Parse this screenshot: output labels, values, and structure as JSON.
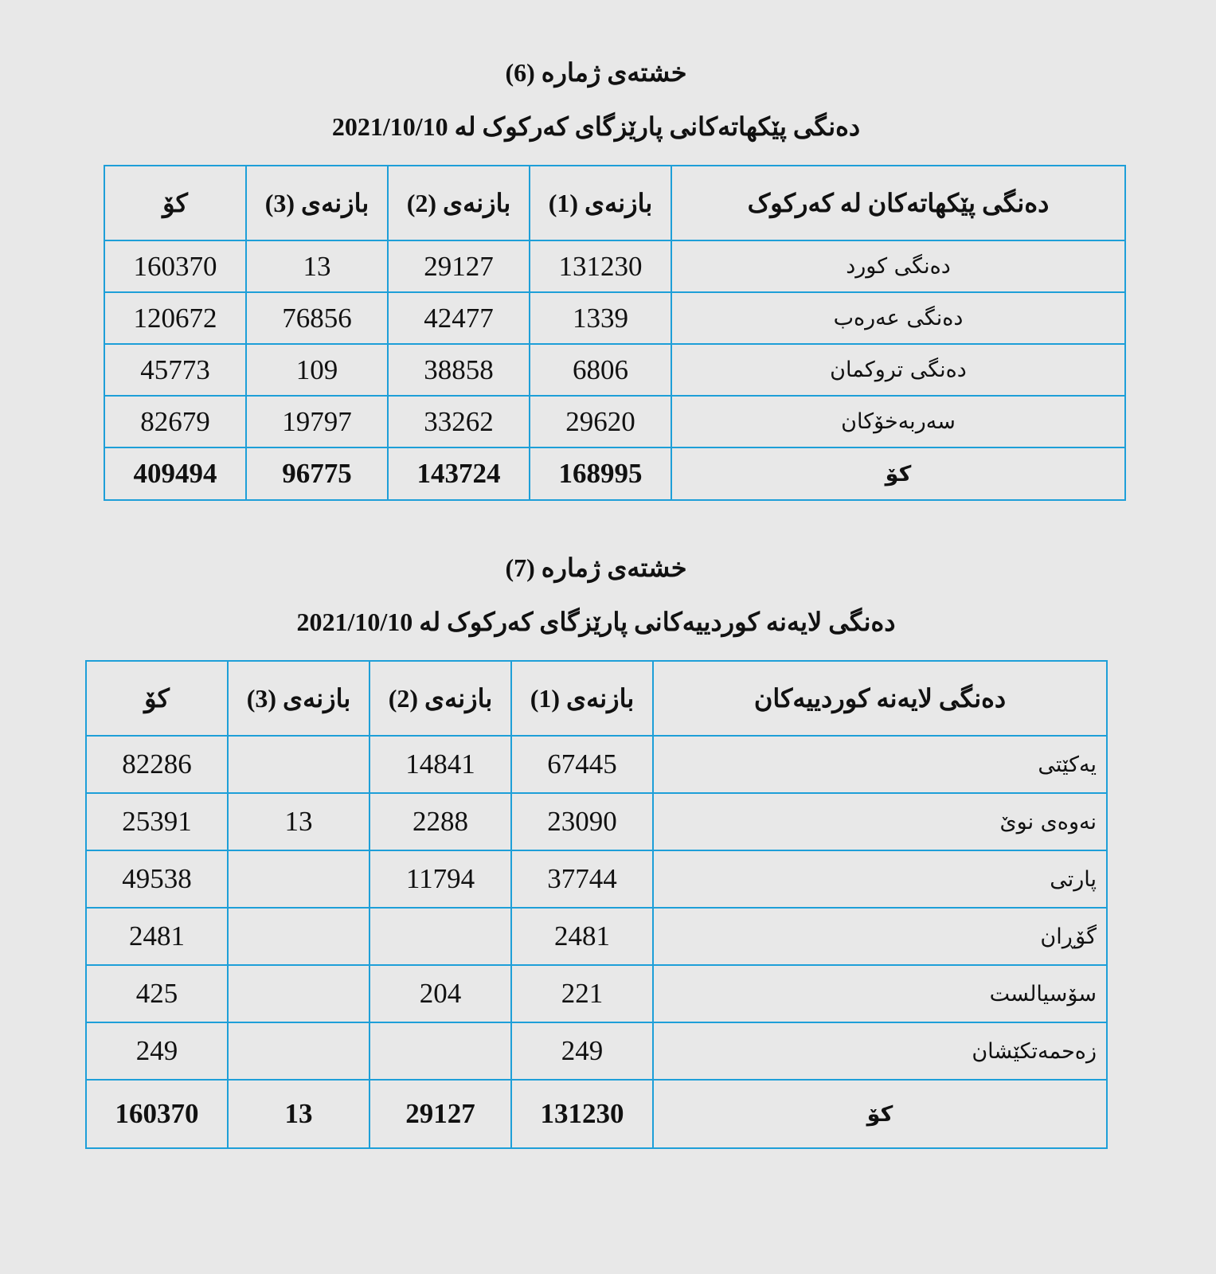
{
  "table6": {
    "number_title": "خشتەی ژمارە (6)",
    "subtitle": "دەنگی پێکهاتەکانی پارێزگای کەرکوک لە 2021/10/10",
    "headers": [
      "دەنگی پێکهاتەکان لە کەرکوک",
      "بازنەی (1)",
      "بازنەی (2)",
      "بازنەی (3)",
      "کۆ"
    ],
    "rows": [
      [
        "دەنگی کورد",
        "131230",
        "29127",
        "13",
        "160370"
      ],
      [
        "دەنگی عەرەب",
        "1339",
        "42477",
        "76856",
        "120672"
      ],
      [
        "دەنگی تروکمان",
        "6806",
        "38858",
        "109",
        "45773"
      ],
      [
        "سەربەخۆکان",
        "29620",
        "33262",
        "19797",
        "82679"
      ]
    ],
    "total": [
      "کۆ",
      "168995",
      "143724",
      "96775",
      "409494"
    ]
  },
  "table7": {
    "number_title": "خشتەی ژمارە (7)",
    "subtitle": "دەنگی لایەنە کوردییەکانی پارێزگای کەرکوک لە 2021/10/10",
    "headers": [
      "دەنگی لایەنە کوردییەکان",
      "بازنەی (1)",
      "بازنەی (2)",
      "بازنەی (3)",
      "کۆ"
    ],
    "rows": [
      [
        "یەکێتی",
        "67445",
        "14841",
        "",
        "82286"
      ],
      [
        "نەوەی نوێ",
        "23090",
        "2288",
        "13",
        "25391"
      ],
      [
        "پارتی",
        "37744",
        "11794",
        "",
        "49538"
      ],
      [
        "گۆڕان",
        "2481",
        "",
        "",
        "2481"
      ],
      [
        "سۆسیالست",
        "221",
        "204",
        "",
        "425"
      ],
      [
        "زەحمەتکێشان",
        "249",
        "",
        "",
        "249"
      ]
    ],
    "total": [
      "کۆ",
      "131230",
      "29127",
      "13",
      "160370"
    ]
  },
  "colors": {
    "border": "#1e9fd8",
    "background": "#e8e8e8"
  }
}
